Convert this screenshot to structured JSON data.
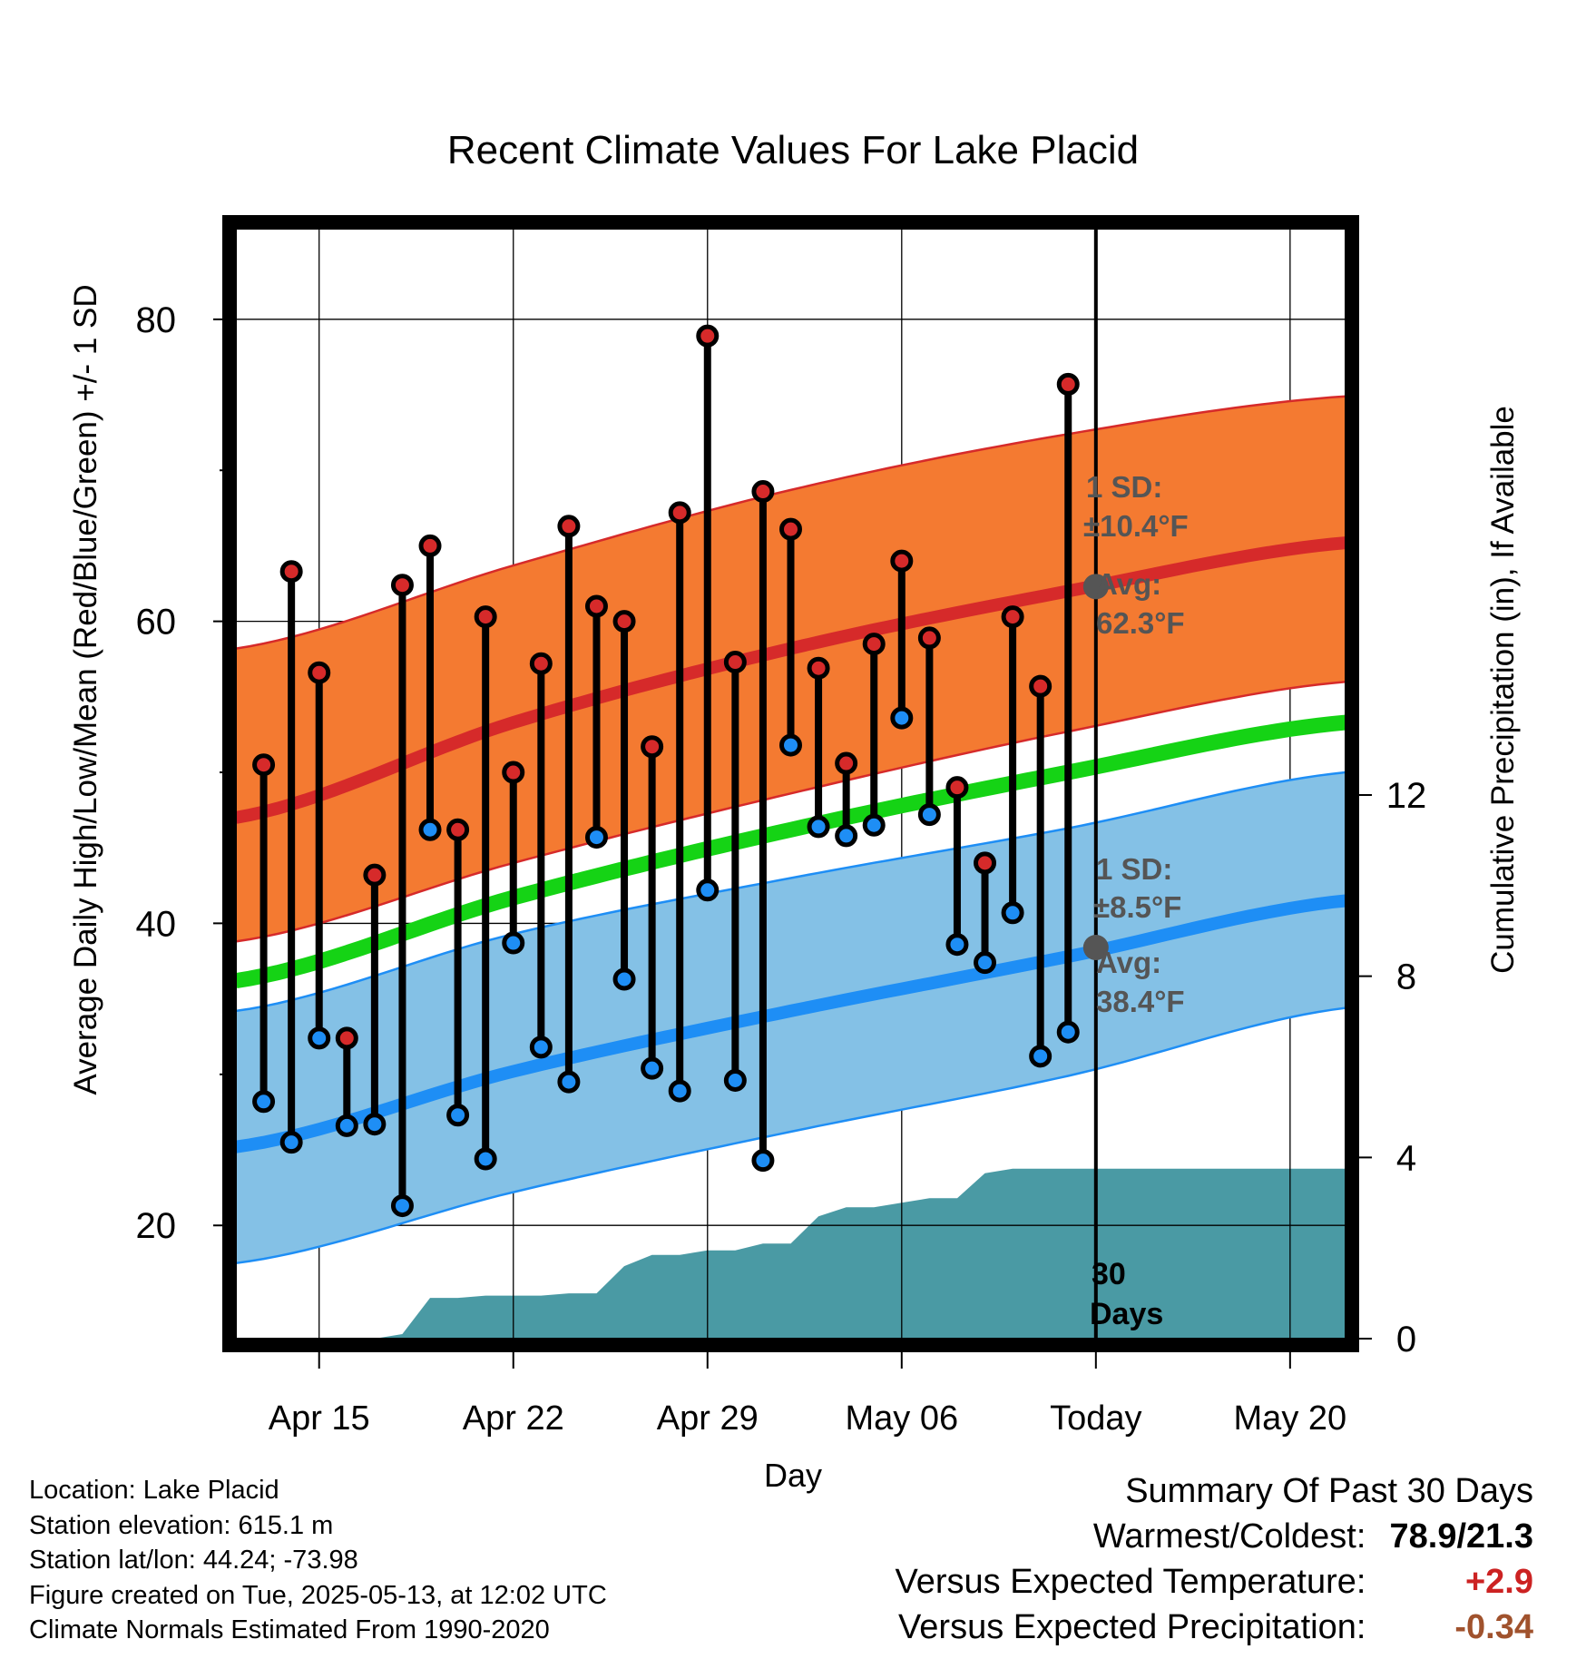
{
  "chart_data": {
    "type": "line",
    "title": "Recent Climate Values For Lake Placid",
    "xlabel": "Day",
    "ylabel": "Average Daily High/Low/Mean (Red/Blue/Green) +/- 1 SD",
    "ylabel_right": "Cumulative Precipitation (in), If Available",
    "x_tick_labels": [
      "Apr 15",
      "Apr 22",
      "Apr 29",
      "May 06",
      "Today",
      "May 20"
    ],
    "x_tick_days": [
      5,
      12,
      19,
      26,
      33,
      40
    ],
    "x_range_days": [
      2,
      42
    ],
    "today_day": 33,
    "ylim": [
      12.5,
      86
    ],
    "y_ticks": [
      20,
      40,
      60,
      80
    ],
    "ylim_right": [
      0,
      24.5
    ],
    "y_ticks_right": [
      0,
      4,
      8,
      12
    ],
    "colors": {
      "high_band": "#f47a31",
      "high_mean": "#d62a2a",
      "high_marker": "#d62a2a",
      "low_band": "#84c1e6",
      "low_mean": "#1e8ef5",
      "low_marker": "#1e8ef5",
      "daily_mean": "#15d315",
      "precip": "#4a9aa4",
      "annotation": "#555555"
    },
    "normals_days": [
      2,
      12,
      22,
      32,
      42
    ],
    "normal_high": [
      47.0,
      53.3,
      58.2,
      62.0,
      65.2
    ],
    "normal_high_sd_upper": [
      58.2,
      63.7,
      68.7,
      72.4,
      74.9
    ],
    "normal_high_sd_lower": [
      38.8,
      44.0,
      48.6,
      52.7,
      56.0
    ],
    "normal_low": [
      25.2,
      30.2,
      34.2,
      37.8,
      41.5
    ],
    "normal_low_sd_upper": [
      34.2,
      39.3,
      43.0,
      46.3,
      50.0
    ],
    "normal_low_sd_lower": [
      17.5,
      22.2,
      26.2,
      29.9,
      34.4
    ],
    "normal_mean": [
      36.2,
      41.7,
      46.2,
      50.0,
      53.3
    ],
    "series": [
      {
        "name": "High",
        "days": [
          3,
          4,
          5,
          6,
          7,
          8,
          9,
          10,
          11,
          12,
          13,
          14,
          15,
          16,
          17,
          18,
          19,
          20,
          21,
          22,
          23,
          24,
          25,
          26,
          27,
          28,
          29,
          30,
          31,
          32
        ],
        "values": [
          50.5,
          63.3,
          56.6,
          32.4,
          43.2,
          62.4,
          65.0,
          46.2,
          60.3,
          50.0,
          57.2,
          66.3,
          61.0,
          60.0,
          51.7,
          67.2,
          78.9,
          57.3,
          68.6,
          66.1,
          56.9,
          50.6,
          58.5,
          64.0,
          58.9,
          49.0,
          44.0,
          60.3,
          55.7,
          75.7
        ]
      },
      {
        "name": "Low",
        "days": [
          3,
          4,
          5,
          6,
          7,
          8,
          9,
          10,
          11,
          12,
          13,
          14,
          15,
          16,
          17,
          18,
          19,
          20,
          21,
          22,
          23,
          24,
          25,
          26,
          27,
          28,
          29,
          30,
          31,
          32
        ],
        "values": [
          28.2,
          25.5,
          32.4,
          26.6,
          26.7,
          21.3,
          46.2,
          27.3,
          24.4,
          38.7,
          31.8,
          29.5,
          45.7,
          36.3,
          30.4,
          28.9,
          42.2,
          29.6,
          24.3,
          51.8,
          46.4,
          45.8,
          46.5,
          53.6,
          47.2,
          38.6,
          37.4,
          40.7,
          31.2,
          32.8
        ]
      },
      {
        "name": "Cumulative Precipitation",
        "days": [
          2,
          5,
          6,
          7,
          8,
          9,
          10,
          11,
          12,
          13,
          14,
          15,
          16,
          17,
          18,
          19,
          20,
          21,
          22,
          23,
          24,
          25,
          26,
          27,
          28,
          29,
          30,
          31,
          32,
          33,
          34,
          35,
          36,
          37,
          38,
          39,
          40,
          41,
          42
        ],
        "values": [
          0,
          0,
          0,
          0,
          0.1,
          0.9,
          0.9,
          0.95,
          0.95,
          0.95,
          1.0,
          1.0,
          1.6,
          1.85,
          1.85,
          1.95,
          1.95,
          2.1,
          2.1,
          2.7,
          2.9,
          2.9,
          3.0,
          3.1,
          3.1,
          3.65,
          3.75,
          3.75,
          3.75,
          3.75,
          3.75,
          3.75,
          3.75,
          3.75,
          3.75,
          3.75,
          3.75,
          3.75,
          3.75
        ]
      }
    ],
    "annotations": {
      "high_sd": [
        "1 SD:",
        "±10.4°F"
      ],
      "high_avg": [
        "Avg:",
        "62.3°F"
      ],
      "low_sd": [
        "1 SD:",
        "±8.5°F"
      ],
      "low_avg": [
        "Avg:",
        "38.4°F"
      ],
      "window": [
        "30",
        "Days"
      ],
      "high_avg_value": 62.3,
      "low_avg_value": 38.4
    }
  },
  "info": {
    "location": "Location: Lake Placid",
    "elevation": "Station elevation: 615.1 m",
    "latlon": "Station lat/lon: 44.24; -73.98",
    "created": "Figure created on Tue, 2025-05-13, at 12:02 UTC",
    "normals": "Climate Normals Estimated From 1990-2020"
  },
  "summary": {
    "heading": "Summary Of Past 30 Days",
    "warm_cold_label": "Warmest/Coldest:",
    "warm_cold_value": "78.9/21.3",
    "temp_label": "Versus Expected Temperature:",
    "temp_value": "+2.9",
    "temp_color": "#cc2222",
    "precip_label": "Versus Expected Precipitation:",
    "precip_value": "-0.34",
    "precip_color": "#a0522d"
  }
}
